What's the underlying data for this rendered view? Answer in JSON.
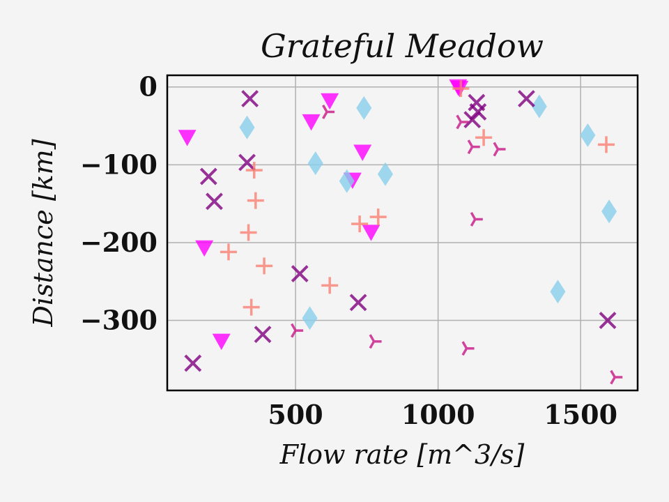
{
  "chart_data": {
    "type": "scatter",
    "title": "Grateful Meadow",
    "xlabel": "Flow rate [m^3/s]",
    "ylabel": "Distance [km]",
    "xlim": [
      50,
      1700
    ],
    "ylim": [
      -390,
      15
    ],
    "x_ticks": [
      500,
      1000,
      1500
    ],
    "y_ticks": [
      0,
      -100,
      -200,
      -300
    ],
    "x_tick_labels": [
      "500",
      "1000",
      "1500"
    ],
    "y_tick_labels": [
      "0",
      "−100",
      "−200",
      "−300"
    ],
    "grid": true,
    "legend": "none",
    "series": [
      {
        "marker": "triangle-down",
        "color": "#ff00ff",
        "points": [
          [
            120,
            -65
          ],
          [
            180,
            -207
          ],
          [
            240,
            -327
          ],
          [
            555,
            -45
          ],
          [
            620,
            -18
          ],
          [
            700,
            -120
          ],
          [
            735,
            -84
          ],
          [
            765,
            -187
          ],
          [
            1070,
            0
          ],
          [
            1075,
            -2
          ]
        ]
      },
      {
        "marker": "diamond",
        "color": "#87ceeb",
        "points": [
          [
            330,
            -52
          ],
          [
            570,
            -98
          ],
          [
            550,
            -297
          ],
          [
            680,
            -121
          ],
          [
            740,
            -27
          ],
          [
            815,
            -112
          ],
          [
            1355,
            -25
          ],
          [
            1420,
            -263
          ],
          [
            1525,
            -62
          ],
          [
            1600,
            -160
          ]
        ]
      },
      {
        "marker": "x",
        "color": "#800080",
        "points": [
          [
            140,
            -355
          ],
          [
            195,
            -115
          ],
          [
            215,
            -147
          ],
          [
            330,
            -97
          ],
          [
            340,
            -15
          ],
          [
            385,
            -318
          ],
          [
            515,
            -240
          ],
          [
            720,
            -277
          ],
          [
            1120,
            -42
          ],
          [
            1135,
            -20
          ],
          [
            1140,
            -32
          ],
          [
            1310,
            -15
          ],
          [
            1595,
            -300
          ]
        ]
      },
      {
        "marker": "plus",
        "color": "#fa8072",
        "points": [
          [
            265,
            -212
          ],
          [
            335,
            -187
          ],
          [
            355,
            -107
          ],
          [
            360,
            -146
          ],
          [
            345,
            -283
          ],
          [
            390,
            -230
          ],
          [
            620,
            -255
          ],
          [
            725,
            -176
          ],
          [
            790,
            -167
          ],
          [
            1080,
            -2
          ],
          [
            1160,
            -65
          ],
          [
            1590,
            -74
          ]
        ]
      },
      {
        "marker": "tri-right",
        "color": "#c71585",
        "points": [
          [
            500,
            -313
          ],
          [
            610,
            -32
          ],
          [
            775,
            -327
          ],
          [
            1080,
            -45
          ],
          [
            1100,
            -336
          ],
          [
            1120,
            -77
          ],
          [
            1130,
            -170
          ],
          [
            1210,
            -80
          ],
          [
            1620,
            -373
          ]
        ]
      }
    ]
  }
}
